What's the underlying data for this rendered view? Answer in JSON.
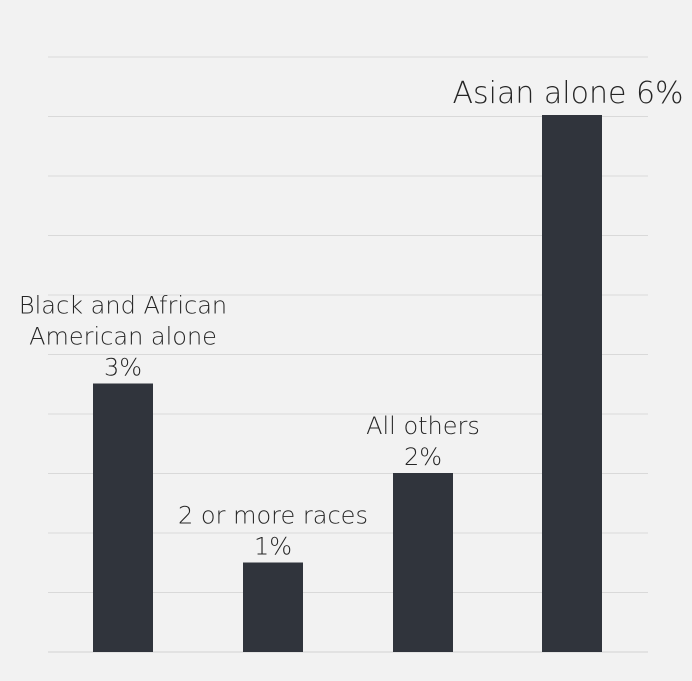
{
  "chart_data": {
    "type": "bar",
    "categories": [
      "Black and African American alone",
      "2 or more races",
      "All others",
      "Asian alone"
    ],
    "values": [
      3,
      1,
      2,
      6
    ],
    "data_labels": [
      [
        "Black and African",
        "American alone",
        "3%"
      ],
      [
        "2 or more races",
        "1%"
      ],
      [
        "All others",
        "2%"
      ],
      [
        "Asian alone 6%"
      ]
    ],
    "title": "",
    "xlabel": "",
    "ylabel": "",
    "grid": true,
    "legend": "none",
    "colors": {
      "bar": "#30343c",
      "grid": "#d9d9d9",
      "background": "#f2f2f2",
      "text": "#262626"
    }
  }
}
